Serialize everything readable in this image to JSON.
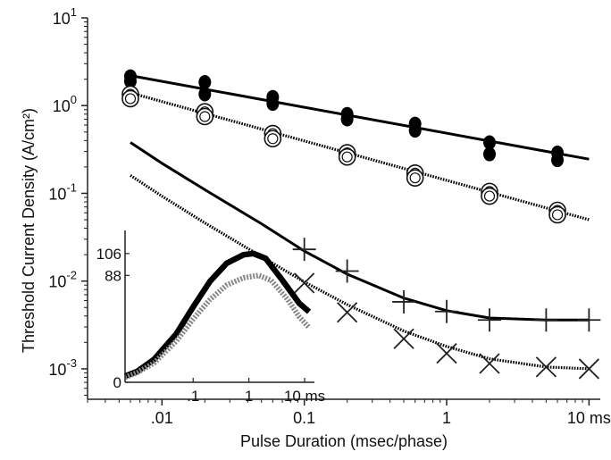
{
  "chart_data": [
    {
      "type": "scatter",
      "xlabel": "Pulse Duration (msec/phase)",
      "ylabel": "Threshold Current Density (A/cm²)",
      "x_scale": "log",
      "y_scale": "log",
      "xlim": [
        0.003,
        12
      ],
      "ylim": [
        0.00045,
        10
      ],
      "x_ticks": [
        {
          "value": 0.01,
          "label": ".01"
        },
        {
          "value": 0.1,
          "label": "0.1"
        },
        {
          "value": 1,
          "label": "1"
        },
        {
          "value": 10,
          "label": "10 ms"
        }
      ],
      "y_ticks": [
        {
          "value": 10,
          "base": "10",
          "exp": "1"
        },
        {
          "value": 1,
          "base": "10",
          "exp": "0"
        },
        {
          "value": 0.1,
          "base": "10",
          "exp": "-1"
        },
        {
          "value": 0.01,
          "base": "10",
          "exp": "-2"
        },
        {
          "value": 0.001,
          "base": "10",
          "exp": "-3"
        }
      ],
      "grid": false,
      "legend": null,
      "series": [
        {
          "marker": "filled-circle",
          "line": "solid",
          "color": "#000000",
          "points": [
            [
              0.006,
              2.15
            ],
            [
              0.006,
              1.9
            ],
            [
              0.02,
              1.85
            ],
            [
              0.02,
              1.35
            ],
            [
              0.06,
              1.25
            ],
            [
              0.06,
              1.05
            ],
            [
              0.2,
              0.8
            ],
            [
              0.2,
              0.7
            ],
            [
              0.6,
              0.62
            ],
            [
              0.6,
              0.52
            ],
            [
              2,
              0.38
            ],
            [
              2,
              0.28
            ],
            [
              6,
              0.29
            ],
            [
              6,
              0.24
            ]
          ],
          "fit": [
            [
              0.006,
              2.2
            ],
            [
              10,
              0.245
            ]
          ]
        },
        {
          "marker": "open-circle",
          "line": "dotted",
          "color": "#000000",
          "points": [
            [
              0.006,
              1.35
            ],
            [
              0.006,
              1.2
            ],
            [
              0.02,
              0.85
            ],
            [
              0.02,
              0.75
            ],
            [
              0.06,
              0.48
            ],
            [
              0.06,
              0.42
            ],
            [
              0.2,
              0.29
            ],
            [
              0.2,
              0.26
            ],
            [
              0.6,
              0.17
            ],
            [
              0.6,
              0.15
            ],
            [
              2,
              0.105
            ],
            [
              2,
              0.093
            ],
            [
              6,
              0.064
            ],
            [
              6,
              0.057
            ]
          ],
          "fit": [
            [
              0.006,
              1.4
            ],
            [
              10,
              0.05
            ]
          ]
        },
        {
          "marker": "plus",
          "line": "solid",
          "color": "#000000",
          "points": [
            [
              0.1,
              0.023
            ],
            [
              0.2,
              0.013
            ],
            [
              0.5,
              0.0058
            ],
            [
              1,
              0.0045
            ],
            [
              2,
              0.0036
            ],
            [
              5,
              0.0036
            ],
            [
              10,
              0.0036
            ]
          ],
          "fit": [
            [
              0.006,
              0.38
            ],
            [
              0.01,
              0.22
            ],
            [
              0.02,
              0.11
            ],
            [
              0.05,
              0.045
            ],
            [
              0.1,
              0.022
            ],
            [
              0.2,
              0.012
            ],
            [
              0.5,
              0.0064
            ],
            [
              1,
              0.0046
            ],
            [
              2,
              0.0038
            ],
            [
              5,
              0.0036
            ],
            [
              10,
              0.0036
            ]
          ]
        },
        {
          "marker": "cross",
          "line": "dotted",
          "color": "#000000",
          "points": [
            [
              0.1,
              0.0095
            ],
            [
              0.2,
              0.0044
            ],
            [
              0.5,
              0.0022
            ],
            [
              1,
              0.0015
            ],
            [
              2,
              0.00115
            ],
            [
              5,
              0.00105
            ],
            [
              10,
              0.001
            ]
          ],
          "fit": [
            [
              0.006,
              0.16
            ],
            [
              0.01,
              0.093
            ],
            [
              0.02,
              0.046
            ],
            [
              0.05,
              0.019
            ],
            [
              0.1,
              0.0098
            ],
            [
              0.2,
              0.0054
            ],
            [
              0.5,
              0.0027
            ],
            [
              1,
              0.0018
            ],
            [
              2,
              0.0013
            ],
            [
              5,
              0.00105
            ],
            [
              10,
              0.001
            ]
          ]
        }
      ]
    },
    {
      "type": "line",
      "placement": "inset-lower-left",
      "x_scale": "log",
      "xlim": [
        0.006,
        15
      ],
      "ylim": [
        0,
        125
      ],
      "x_ticks": [
        {
          "value": 0.1,
          "label": ".1"
        },
        {
          "value": 1,
          "label": "1"
        },
        {
          "value": 10,
          "label": "10 ms"
        }
      ],
      "y_ticks": [
        {
          "value": 0,
          "label": "0"
        },
        {
          "value": 88,
          "label": "88"
        },
        {
          "value": 106,
          "label": "106"
        }
      ],
      "series": [
        {
          "line": "solid-thick",
          "color": "#000000",
          "points": [
            [
              0.006,
              5
            ],
            [
              0.01,
              9
            ],
            [
              0.02,
              19
            ],
            [
              0.05,
              40
            ],
            [
              0.1,
              62
            ],
            [
              0.2,
              83
            ],
            [
              0.4,
              98
            ],
            [
              0.8,
              105
            ],
            [
              1.2,
              106
            ],
            [
              2,
              102
            ],
            [
              4,
              84
            ],
            [
              8,
              65
            ],
            [
              12,
              58
            ]
          ]
        },
        {
          "line": "dotted-thick",
          "color": "#888888",
          "points": [
            [
              0.006,
              4
            ],
            [
              0.01,
              8
            ],
            [
              0.02,
              16
            ],
            [
              0.05,
              34
            ],
            [
              0.1,
              52
            ],
            [
              0.2,
              68
            ],
            [
              0.4,
              80
            ],
            [
              0.8,
              86
            ],
            [
              1.5,
              88
            ],
            [
              2.5,
              84
            ],
            [
              5,
              68
            ],
            [
              8,
              54
            ],
            [
              12,
              45
            ]
          ]
        }
      ]
    }
  ]
}
